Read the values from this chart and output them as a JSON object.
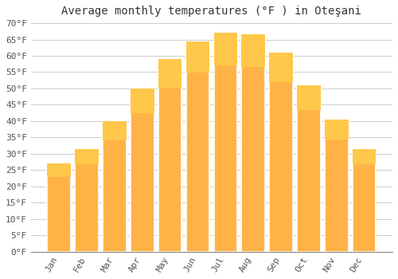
{
  "title": "Average monthly temperatures (°F ) in Oteşani",
  "months": [
    "Jan",
    "Feb",
    "Mar",
    "Apr",
    "May",
    "Jun",
    "Jul",
    "Aug",
    "Sep",
    "Oct",
    "Nov",
    "Dec"
  ],
  "values": [
    27,
    31.5,
    40,
    50,
    59,
    64.5,
    67,
    66.5,
    61,
    51,
    40.5,
    31.5
  ],
  "bar_color_bottom": "#FFB300",
  "bar_color_top": "#FFA500",
  "ylim": [
    0,
    70
  ],
  "yticks": [
    0,
    5,
    10,
    15,
    20,
    25,
    30,
    35,
    40,
    45,
    50,
    55,
    60,
    65,
    70
  ],
  "background_color": "#FFFFFF",
  "grid_color": "#CCCCCC",
  "title_fontsize": 10,
  "tick_fontsize": 8,
  "bar_width": 0.85
}
